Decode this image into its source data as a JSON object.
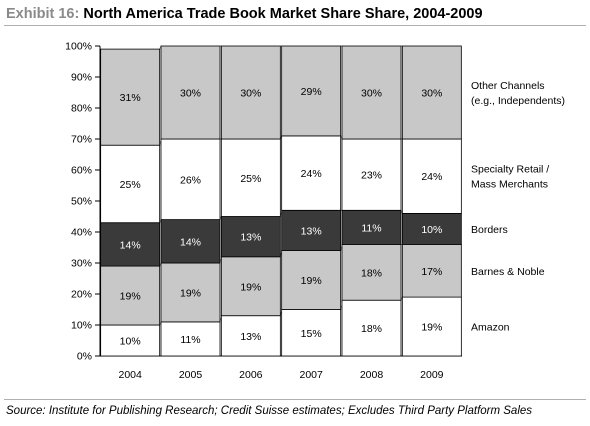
{
  "header": {
    "exhibit": "Exhibit 16:",
    "title": "North America Trade Book Market Share Share, 2004-2009"
  },
  "footer": {
    "source": "Source: Institute for Publishing Research; Credit Suisse estimates; Excludes Third Party Platform Sales"
  },
  "chart_data": {
    "type": "bar",
    "stacked": true,
    "categories": [
      "2004",
      "2005",
      "2006",
      "2007",
      "2008",
      "2009"
    ],
    "series": [
      {
        "name": "Amazon",
        "values": [
          10,
          11,
          13,
          15,
          18,
          19
        ],
        "labels": [
          "10%",
          "11%",
          "13%",
          "15%",
          "18%",
          "19%"
        ],
        "color": "#ffffff",
        "text_color": "#000000"
      },
      {
        "name": "Barnes & Noble",
        "values": [
          19,
          19,
          19,
          19,
          18,
          17
        ],
        "labels": [
          "19%",
          "19%",
          "19%",
          "19%",
          "18%",
          "17%"
        ],
        "color": "#c8c8c8",
        "text_color": "#000000"
      },
      {
        "name": "Borders",
        "values": [
          14,
          14,
          13,
          13,
          11,
          10
        ],
        "labels": [
          "14%",
          "14%",
          "13%",
          "13%",
          "11%",
          "10%"
        ],
        "color": "#3a3a3a",
        "text_color": "#ffffff"
      },
      {
        "name": "Specialty Retail / Mass Merchants",
        "legend_lines": [
          "Specialty Retail /",
          "Mass Merchants"
        ],
        "values": [
          25,
          26,
          25,
          24,
          23,
          24
        ],
        "labels": [
          "25%",
          "26%",
          "25%",
          "24%",
          "23%",
          "24%"
        ],
        "color": "#ffffff",
        "text_color": "#000000"
      },
      {
        "name": "Other Channels (e.g., Independents)",
        "legend_lines": [
          "Other Channels",
          "(e.g., Independents)"
        ],
        "values": [
          31,
          30,
          30,
          29,
          30,
          30
        ],
        "labels": [
          "31%",
          "30%",
          "30%",
          "29%",
          "30%",
          "30%"
        ],
        "color": "#c8c8c8",
        "text_color": "#000000"
      }
    ],
    "yticks": [
      "0%",
      "10%",
      "20%",
      "30%",
      "40%",
      "50%",
      "60%",
      "70%",
      "80%",
      "90%",
      "100%"
    ],
    "ylim": [
      0,
      100
    ],
    "grid": false,
    "series_connectors": "dashed",
    "legend_position": "right"
  }
}
